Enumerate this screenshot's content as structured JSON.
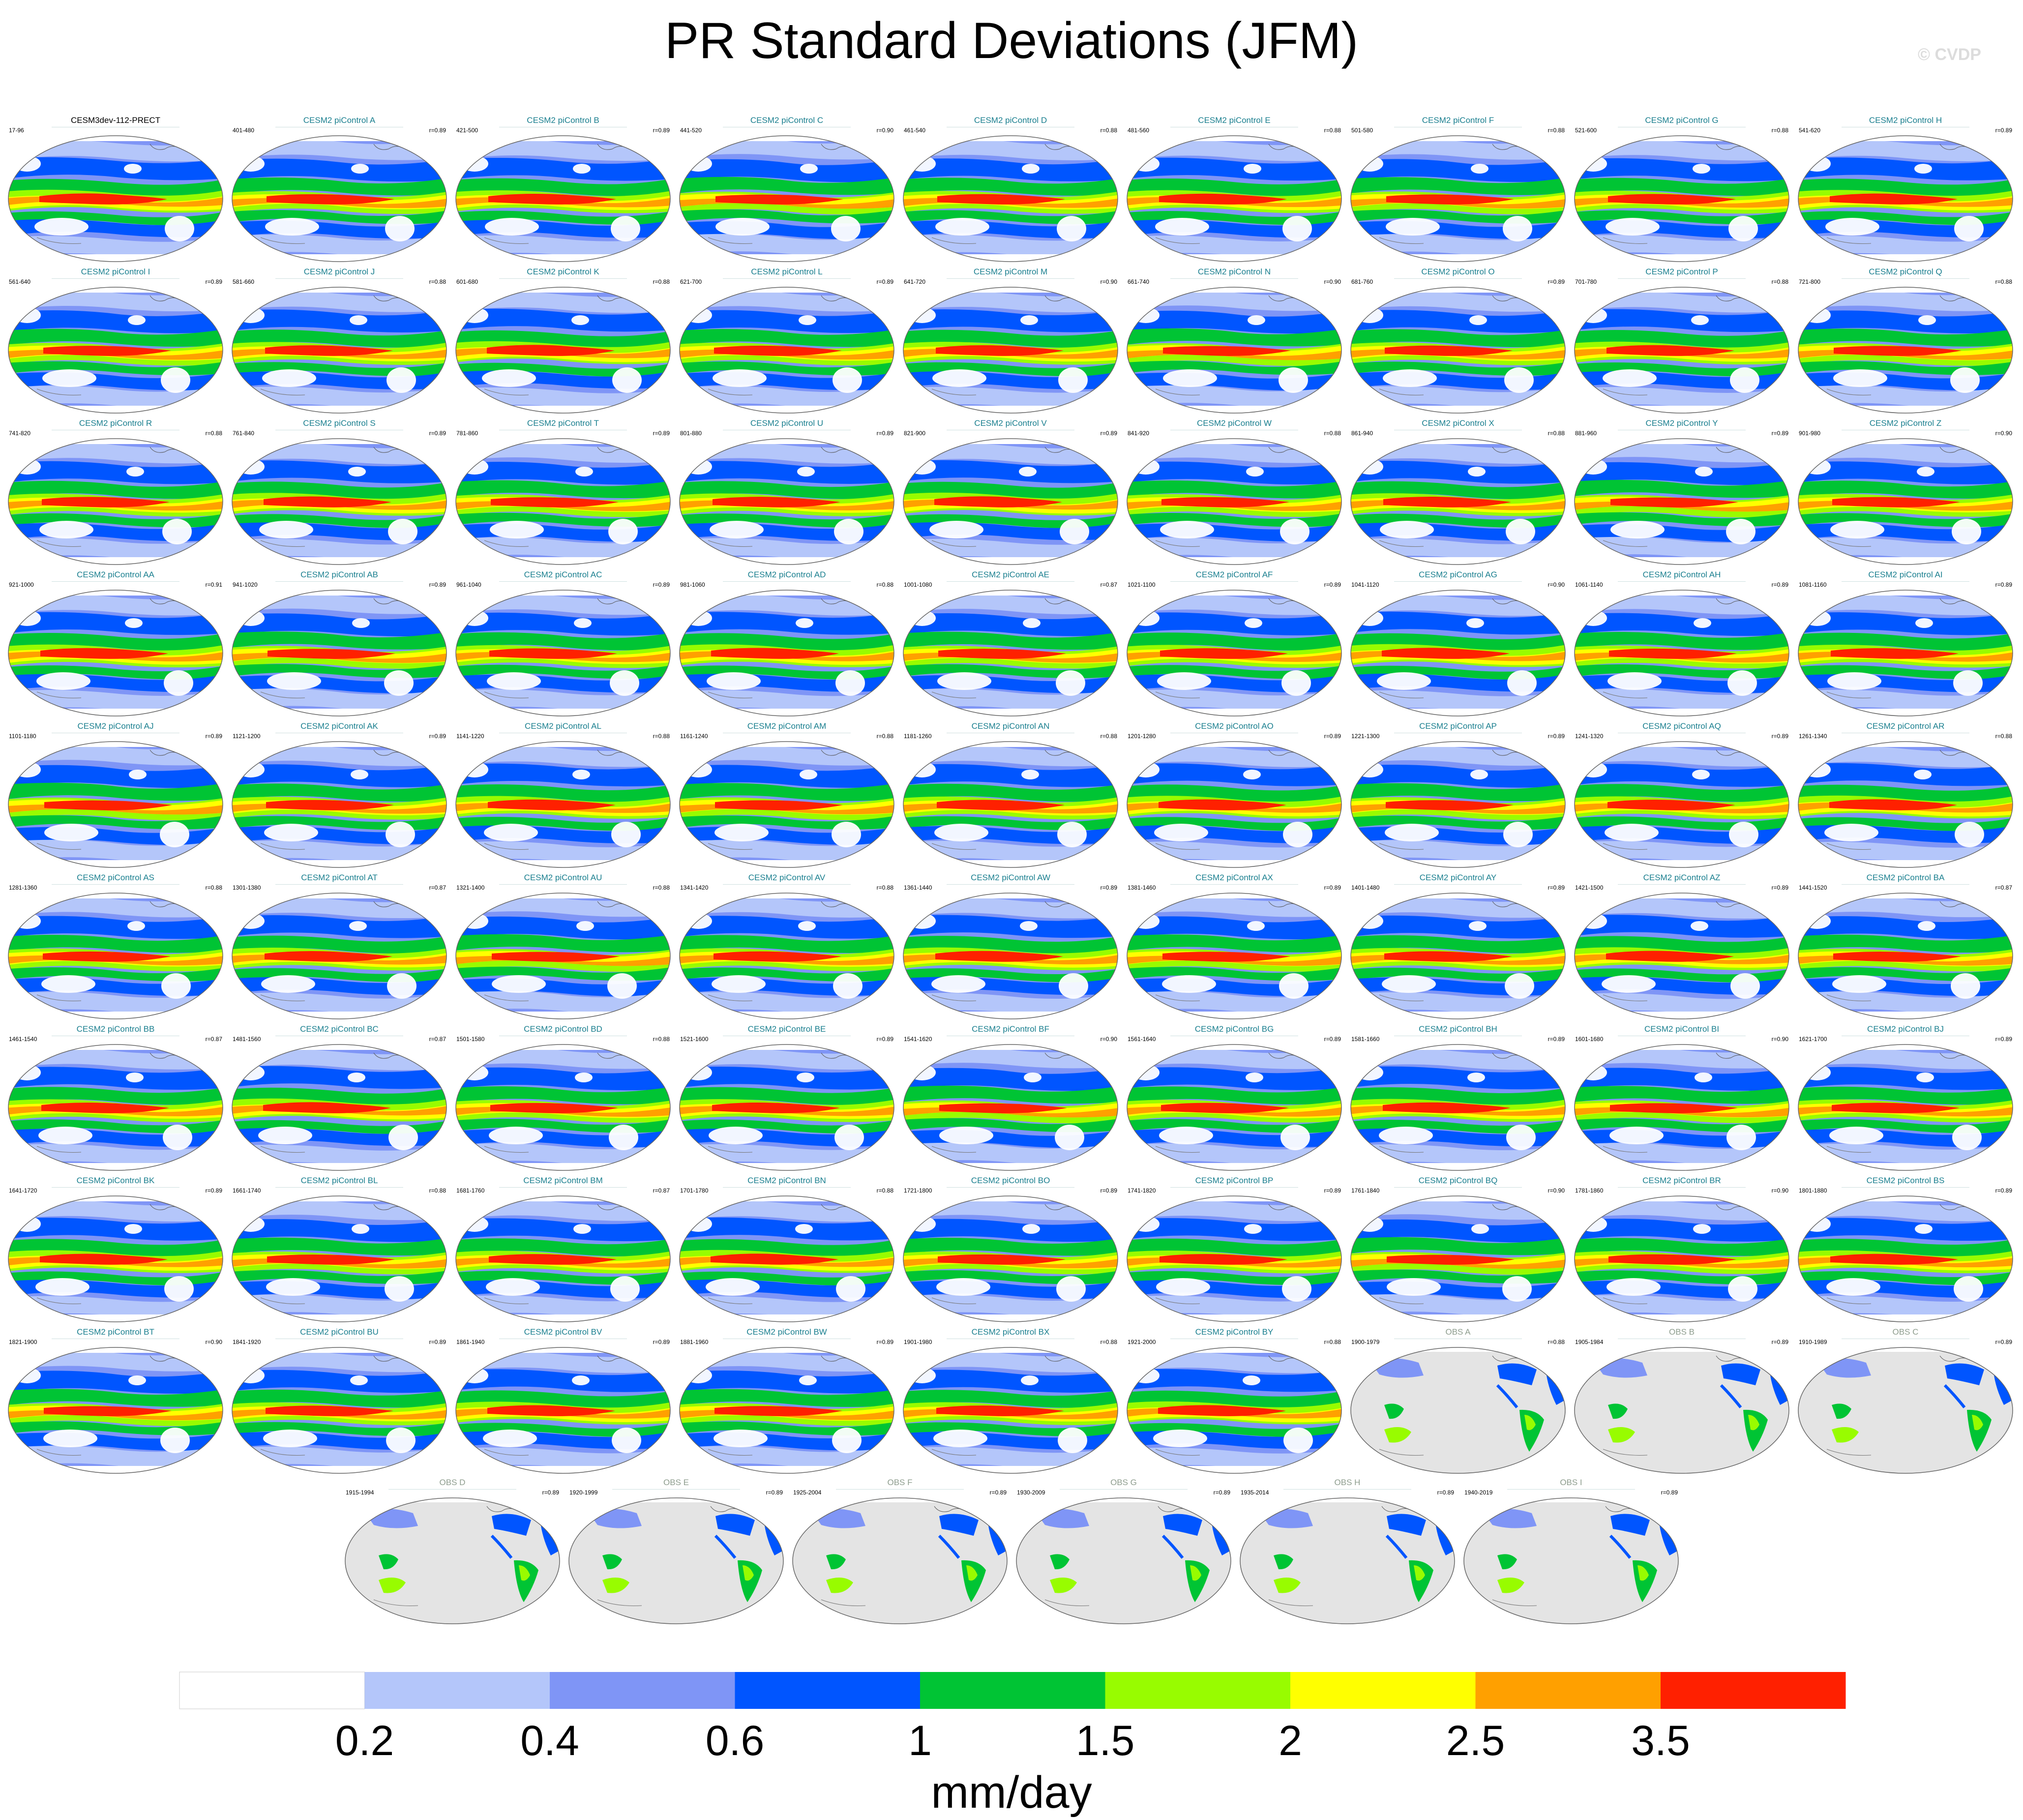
{
  "title": "PR Standard Deviations (JFM)",
  "watermark": "© CVDP",
  "panels": [
    {
      "title": "CESM3dev-112-PRECT",
      "years": "17-96",
      "r": "",
      "type": "model"
    },
    {
      "title": "CESM2 piControl A",
      "years": "401-480",
      "r": "r=0.89",
      "type": "model"
    },
    {
      "title": "CESM2 piControl B",
      "years": "421-500",
      "r": "r=0.89",
      "type": "model"
    },
    {
      "title": "CESM2 piControl C",
      "years": "441-520",
      "r": "r=0.90",
      "type": "model"
    },
    {
      "title": "CESM2 piControl D",
      "years": "461-540",
      "r": "r=0.88",
      "type": "model"
    },
    {
      "title": "CESM2 piControl E",
      "years": "481-560",
      "r": "r=0.88",
      "type": "model"
    },
    {
      "title": "CESM2 piControl F",
      "years": "501-580",
      "r": "r=0.88",
      "type": "model"
    },
    {
      "title": "CESM2 piControl G",
      "years": "521-600",
      "r": "r=0.88",
      "type": "model"
    },
    {
      "title": "CESM2 piControl H",
      "years": "541-620",
      "r": "r=0.89",
      "type": "model"
    },
    {
      "title": "CESM2 piControl I",
      "years": "561-640",
      "r": "r=0.89",
      "type": "model"
    },
    {
      "title": "CESM2 piControl J",
      "years": "581-660",
      "r": "r=0.88",
      "type": "model"
    },
    {
      "title": "CESM2 piControl K",
      "years": "601-680",
      "r": "r=0.88",
      "type": "model"
    },
    {
      "title": "CESM2 piControl L",
      "years": "621-700",
      "r": "r=0.89",
      "type": "model"
    },
    {
      "title": "CESM2 piControl M",
      "years": "641-720",
      "r": "r=0.90",
      "type": "model"
    },
    {
      "title": "CESM2 piControl N",
      "years": "661-740",
      "r": "r=0.90",
      "type": "model"
    },
    {
      "title": "CESM2 piControl O",
      "years": "681-760",
      "r": "r=0.89",
      "type": "model"
    },
    {
      "title": "CESM2 piControl P",
      "years": "701-780",
      "r": "r=0.88",
      "type": "model"
    },
    {
      "title": "CESM2 piControl Q",
      "years": "721-800",
      "r": "r=0.88",
      "type": "model"
    },
    {
      "title": "CESM2 piControl R",
      "years": "741-820",
      "r": "r=0.88",
      "type": "model"
    },
    {
      "title": "CESM2 piControl S",
      "years": "761-840",
      "r": "r=0.89",
      "type": "model"
    },
    {
      "title": "CESM2 piControl T",
      "years": "781-860",
      "r": "r=0.89",
      "type": "model"
    },
    {
      "title": "CESM2 piControl U",
      "years": "801-880",
      "r": "r=0.89",
      "type": "model"
    },
    {
      "title": "CESM2 piControl V",
      "years": "821-900",
      "r": "r=0.89",
      "type": "model"
    },
    {
      "title": "CESM2 piControl W",
      "years": "841-920",
      "r": "r=0.88",
      "type": "model"
    },
    {
      "title": "CESM2 piControl X",
      "years": "861-940",
      "r": "r=0.88",
      "type": "model"
    },
    {
      "title": "CESM2 piControl Y",
      "years": "881-960",
      "r": "r=0.89",
      "type": "model"
    },
    {
      "title": "CESM2 piControl Z",
      "years": "901-980",
      "r": "r=0.90",
      "type": "model"
    },
    {
      "title": "CESM2 piControl AA",
      "years": "921-1000",
      "r": "r=0.91",
      "type": "model"
    },
    {
      "title": "CESM2 piControl AB",
      "years": "941-1020",
      "r": "r=0.89",
      "type": "model"
    },
    {
      "title": "CESM2 piControl AC",
      "years": "961-1040",
      "r": "r=0.89",
      "type": "model"
    },
    {
      "title": "CESM2 piControl AD",
      "years": "981-1060",
      "r": "r=0.88",
      "type": "model"
    },
    {
      "title": "CESM2 piControl AE",
      "years": "1001-1080",
      "r": "r=0.87",
      "type": "model"
    },
    {
      "title": "CESM2 piControl AF",
      "years": "1021-1100",
      "r": "r=0.89",
      "type": "model"
    },
    {
      "title": "CESM2 piControl AG",
      "years": "1041-1120",
      "r": "r=0.90",
      "type": "model"
    },
    {
      "title": "CESM2 piControl AH",
      "years": "1061-1140",
      "r": "r=0.89",
      "type": "model"
    },
    {
      "title": "CESM2 piControl AI",
      "years": "1081-1160",
      "r": "r=0.89",
      "type": "model"
    },
    {
      "title": "CESM2 piControl AJ",
      "years": "1101-1180",
      "r": "r=0.89",
      "type": "model"
    },
    {
      "title": "CESM2 piControl AK",
      "years": "1121-1200",
      "r": "r=0.89",
      "type": "model"
    },
    {
      "title": "CESM2 piControl AL",
      "years": "1141-1220",
      "r": "r=0.88",
      "type": "model"
    },
    {
      "title": "CESM2 piControl AM",
      "years": "1161-1240",
      "r": "r=0.88",
      "type": "model"
    },
    {
      "title": "CESM2 piControl AN",
      "years": "1181-1260",
      "r": "r=0.88",
      "type": "model"
    },
    {
      "title": "CESM2 piControl AO",
      "years": "1201-1280",
      "r": "r=0.89",
      "type": "model"
    },
    {
      "title": "CESM2 piControl AP",
      "years": "1221-1300",
      "r": "r=0.89",
      "type": "model"
    },
    {
      "title": "CESM2 piControl AQ",
      "years": "1241-1320",
      "r": "r=0.89",
      "type": "model"
    },
    {
      "title": "CESM2 piControl AR",
      "years": "1261-1340",
      "r": "r=0.88",
      "type": "model"
    },
    {
      "title": "CESM2 piControl AS",
      "years": "1281-1360",
      "r": "r=0.88",
      "type": "model"
    },
    {
      "title": "CESM2 piControl AT",
      "years": "1301-1380",
      "r": "r=0.87",
      "type": "model"
    },
    {
      "title": "CESM2 piControl AU",
      "years": "1321-1400",
      "r": "r=0.88",
      "type": "model"
    },
    {
      "title": "CESM2 piControl AV",
      "years": "1341-1420",
      "r": "r=0.88",
      "type": "model"
    },
    {
      "title": "CESM2 piControl AW",
      "years": "1361-1440",
      "r": "r=0.89",
      "type": "model"
    },
    {
      "title": "CESM2 piControl AX",
      "years": "1381-1460",
      "r": "r=0.89",
      "type": "model"
    },
    {
      "title": "CESM2 piControl AY",
      "years": "1401-1480",
      "r": "r=0.89",
      "type": "model"
    },
    {
      "title": "CESM2 piControl AZ",
      "years": "1421-1500",
      "r": "r=0.89",
      "type": "model"
    },
    {
      "title": "CESM2 piControl BA",
      "years": "1441-1520",
      "r": "r=0.87",
      "type": "model"
    },
    {
      "title": "CESM2 piControl BB",
      "years": "1461-1540",
      "r": "r=0.87",
      "type": "model"
    },
    {
      "title": "CESM2 piControl BC",
      "years": "1481-1560",
      "r": "r=0.87",
      "type": "model"
    },
    {
      "title": "CESM2 piControl BD",
      "years": "1501-1580",
      "r": "r=0.88",
      "type": "model"
    },
    {
      "title": "CESM2 piControl BE",
      "years": "1521-1600",
      "r": "r=0.89",
      "type": "model"
    },
    {
      "title": "CESM2 piControl BF",
      "years": "1541-1620",
      "r": "r=0.90",
      "type": "model"
    },
    {
      "title": "CESM2 piControl BG",
      "years": "1561-1640",
      "r": "r=0.89",
      "type": "model"
    },
    {
      "title": "CESM2 piControl BH",
      "years": "1581-1660",
      "r": "r=0.89",
      "type": "model"
    },
    {
      "title": "CESM2 piControl BI",
      "years": "1601-1680",
      "r": "r=0.90",
      "type": "model"
    },
    {
      "title": "CESM2 piControl BJ",
      "years": "1621-1700",
      "r": "r=0.89",
      "type": "model"
    },
    {
      "title": "CESM2 piControl BK",
      "years": "1641-1720",
      "r": "r=0.89",
      "type": "model"
    },
    {
      "title": "CESM2 piControl BL",
      "years": "1661-1740",
      "r": "r=0.88",
      "type": "model"
    },
    {
      "title": "CESM2 piControl BM",
      "years": "1681-1760",
      "r": "r=0.87",
      "type": "model"
    },
    {
      "title": "CESM2 piControl BN",
      "years": "1701-1780",
      "r": "r=0.88",
      "type": "model"
    },
    {
      "title": "CESM2 piControl BO",
      "years": "1721-1800",
      "r": "r=0.89",
      "type": "model"
    },
    {
      "title": "CESM2 piControl BP",
      "years": "1741-1820",
      "r": "r=0.89",
      "type": "model"
    },
    {
      "title": "CESM2 piControl BQ",
      "years": "1761-1840",
      "r": "r=0.90",
      "type": "model"
    },
    {
      "title": "CESM2 piControl BR",
      "years": "1781-1860",
      "r": "r=0.90",
      "type": "model"
    },
    {
      "title": "CESM2 piControl BS",
      "years": "1801-1880",
      "r": "r=0.89",
      "type": "model"
    },
    {
      "title": "CESM2 piControl BT",
      "years": "1821-1900",
      "r": "r=0.90",
      "type": "model"
    },
    {
      "title": "CESM2 piControl BU",
      "years": "1841-1920",
      "r": "r=0.89",
      "type": "model"
    },
    {
      "title": "CESM2 piControl BV",
      "years": "1861-1940",
      "r": "r=0.89",
      "type": "model"
    },
    {
      "title": "CESM2 piControl BW",
      "years": "1881-1960",
      "r": "r=0.89",
      "type": "model"
    },
    {
      "title": "CESM2 piControl BX",
      "years": "1901-1980",
      "r": "r=0.88",
      "type": "model"
    },
    {
      "title": "CESM2 piControl BY",
      "years": "1921-2000",
      "r": "r=0.88",
      "type": "model"
    },
    {
      "title": "OBS A",
      "years": "1900-1979",
      "r": "r=0.88",
      "type": "obs"
    },
    {
      "title": "OBS B",
      "years": "1905-1984",
      "r": "r=0.89",
      "type": "obs"
    },
    {
      "title": "OBS C",
      "years": "1910-1989",
      "r": "r=0.89",
      "type": "obs"
    },
    {
      "title": "OBS D",
      "years": "1915-1994",
      "r": "r=0.89",
      "type": "obs"
    },
    {
      "title": "OBS E",
      "years": "1920-1999",
      "r": "r=0.89",
      "type": "obs"
    },
    {
      "title": "OBS F",
      "years": "1925-2004",
      "r": "r=0.89",
      "type": "obs"
    },
    {
      "title": "OBS G",
      "years": "1930-2009",
      "r": "r=0.89",
      "type": "obs"
    },
    {
      "title": "OBS H",
      "years": "1935-2014",
      "r": "r=0.89",
      "type": "obs"
    },
    {
      "title": "OBS I",
      "years": "1940-2019",
      "r": "r=0.89",
      "type": "obs"
    }
  ],
  "colorbar": {
    "labels": [
      "0.2",
      "0.4",
      "0.6",
      "1",
      "1.5",
      "2",
      "2.5",
      "3.5"
    ],
    "colors": [
      "#ffffff",
      "#b4c6fa",
      "#7f95f6",
      "#0055ff",
      "#00c434",
      "#98fc00",
      "#ffff00",
      "#ffa000",
      "#ff2000"
    ],
    "units": "mm/day"
  },
  "colors": {
    "model_title": "#1a7f8f",
    "obs_title": "#8e9d8e",
    "land_fill": "#e4e4e4"
  }
}
